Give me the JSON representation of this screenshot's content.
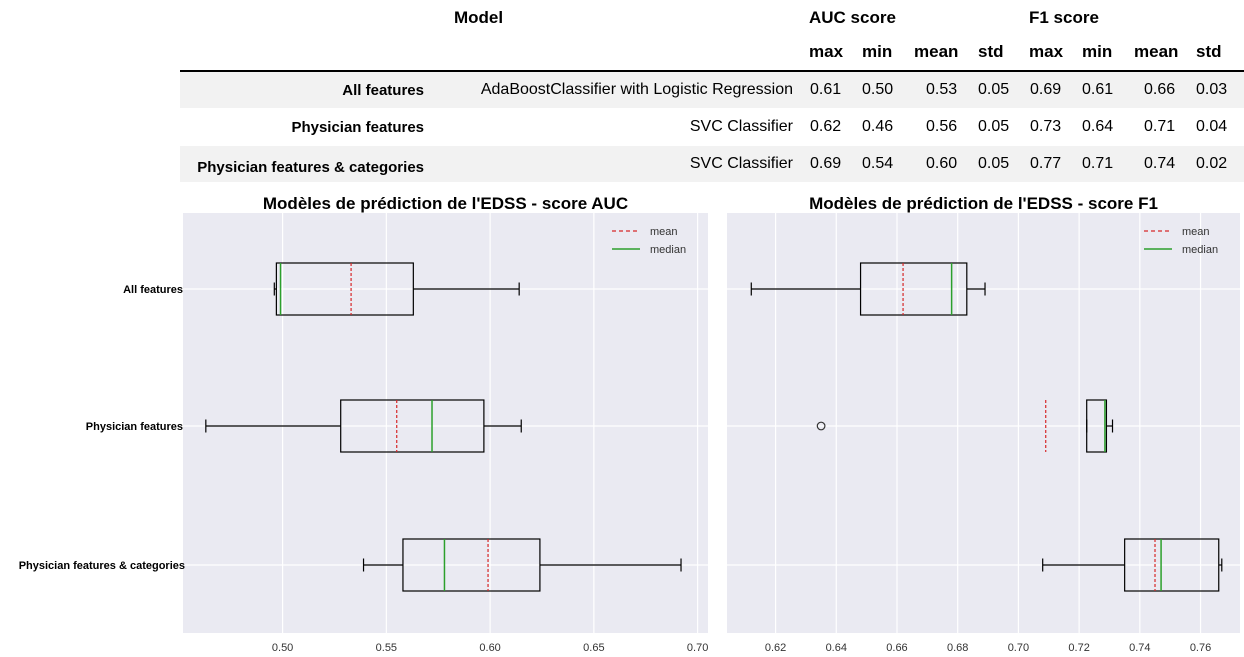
{
  "table": {
    "model_header": "Model",
    "group_headers": [
      "AUC score",
      "F1 score"
    ],
    "sub_headers": [
      "max",
      "min",
      "mean",
      "std",
      "max",
      "min",
      "mean",
      "std"
    ],
    "rows": [
      {
        "label": "All features",
        "model": "AdaBoostClassifier with Logistic Regression",
        "values": [
          "0.61",
          "0.50",
          "0.53",
          "0.05",
          "0.69",
          "0.61",
          "0.66",
          "0.03"
        ]
      },
      {
        "label": "Physician features",
        "model": "SVC Classifier",
        "values": [
          "0.62",
          "0.46",
          "0.56",
          "0.05",
          "0.73",
          "0.64",
          "0.71",
          "0.04"
        ]
      },
      {
        "label": "Physician features & categories",
        "model": "SVC Classifier",
        "values": [
          "0.69",
          "0.54",
          "0.60",
          "0.05",
          "0.77",
          "0.71",
          "0.74",
          "0.02"
        ]
      }
    ]
  },
  "chart_data": [
    {
      "type": "box",
      "title": "Modèles de prédiction de l'EDSS - score AUC",
      "categories": [
        "All features",
        "Physician features",
        "Physician features & categories"
      ],
      "xlim": [
        0.452,
        0.705
      ],
      "xticks": [
        "0.50",
        "0.55",
        "0.60",
        "0.65",
        "0.70"
      ],
      "boxes": [
        {
          "whislo": 0.496,
          "q1": 0.497,
          "median": 0.499,
          "q3": 0.563,
          "whishi": 0.614,
          "mean": 0.533,
          "fliers": []
        },
        {
          "whislo": 0.463,
          "q1": 0.528,
          "median": 0.572,
          "q3": 0.597,
          "whishi": 0.615,
          "mean": 0.555,
          "fliers": []
        },
        {
          "whislo": 0.539,
          "q1": 0.558,
          "median": 0.578,
          "q3": 0.624,
          "whishi": 0.692,
          "mean": 0.599,
          "fliers": []
        }
      ],
      "legend": {
        "position": "top-right",
        "entries": [
          "mean",
          "median"
        ]
      },
      "colors": {
        "mean": "#d62728",
        "median": "#2ca02c",
        "background": "#eaeaf2"
      },
      "grid": true
    },
    {
      "type": "box",
      "title": "Modèles de prédiction de l'EDSS - score F1",
      "categories": [
        "All features",
        "Physician features",
        "Physician features & categories"
      ],
      "xlim": [
        0.604,
        0.773
      ],
      "xticks": [
        "0.62",
        "0.64",
        "0.66",
        "0.68",
        "0.70",
        "0.72",
        "0.74",
        "0.76"
      ],
      "boxes": [
        {
          "whislo": 0.612,
          "q1": 0.648,
          "median": 0.678,
          "q3": 0.683,
          "whishi": 0.689,
          "mean": 0.662,
          "fliers": []
        },
        {
          "whislo": 0.7225,
          "q1": 0.7225,
          "median": 0.7285,
          "q3": 0.729,
          "whishi": 0.731,
          "mean": 0.709,
          "fliers": [
            0.635
          ]
        },
        {
          "whislo": 0.708,
          "q1": 0.735,
          "median": 0.747,
          "q3": 0.766,
          "whishi": 0.767,
          "mean": 0.745,
          "fliers": []
        }
      ],
      "legend": {
        "position": "top-right",
        "entries": [
          "mean",
          "median"
        ]
      },
      "colors": {
        "mean": "#d62728",
        "median": "#2ca02c",
        "background": "#eaeaf2"
      },
      "grid": true
    }
  ]
}
